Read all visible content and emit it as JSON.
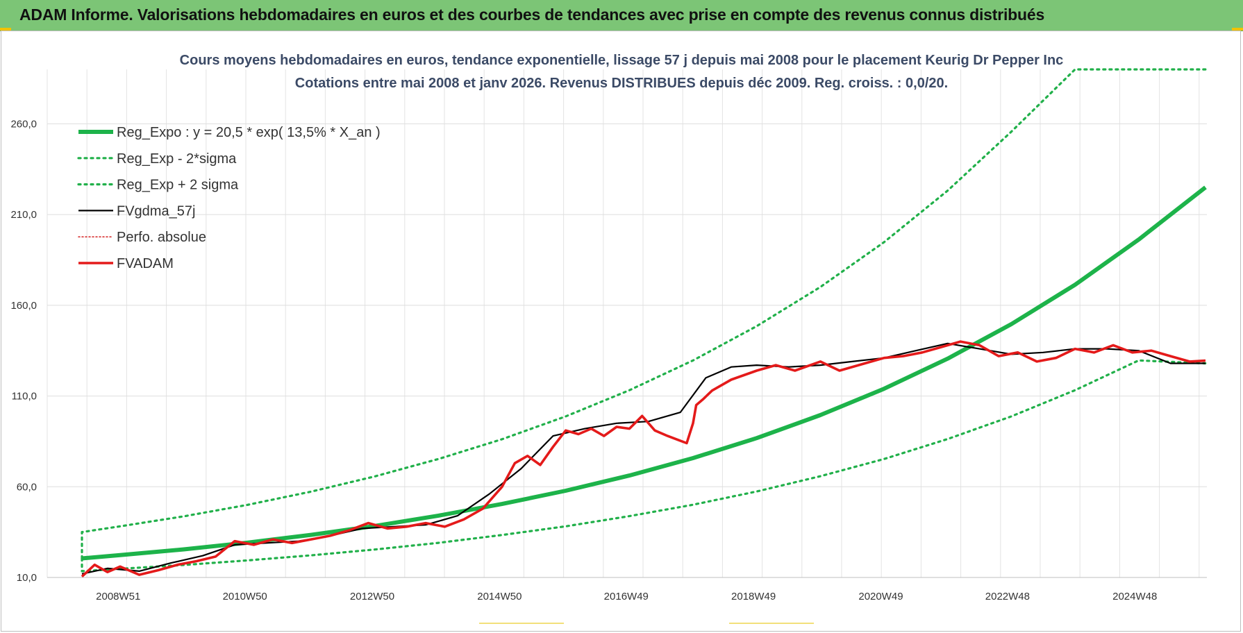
{
  "header": {
    "title": "ADAM Informe. Valorisations hebdomadaires en euros et des courbes de tendances avec prise en compte des revenus connus distribués"
  },
  "colors": {
    "header_bg": "#7cc576",
    "accent_yellow": "#f2c200",
    "reg_green": "#1db34a",
    "band_green": "#21b04a",
    "fvgdma_black": "#000000",
    "fvadam_red": "#e41a1a",
    "perfo_red": "#d42020"
  },
  "chart_data": {
    "type": "line",
    "title_line1": "Cours moyens hebdomadaires en euros, tendance exponentielle, lissage 57 j depuis mai 2008 pour le placement Keurig Dr Pepper Inc",
    "title_line2": "Cotations entre mai 2008 et janv 2026. Revenus DISTRIBUES depuis déc 2009. Reg. croiss. : 0,0/20.",
    "xlabel": "",
    "ylabel": "",
    "x_range_years": [
      2008.4,
      2026.05
    ],
    "x_tick_labels": [
      "2008W51",
      "2010W50",
      "2012W50",
      "2014W50",
      "2016W49",
      "2018W49",
      "2020W49",
      "2022W48",
      "2024W48"
    ],
    "x_tick_years": [
      2008.97,
      2010.96,
      2012.96,
      2014.96,
      2016.95,
      2018.95,
      2020.95,
      2022.94,
      2024.94
    ],
    "ylim": [
      10,
      290
    ],
    "y_tick_values": [
      10,
      60,
      110,
      160,
      210,
      260
    ],
    "y_tick_labels": [
      "10,0",
      "60,0",
      "110,0",
      "160,0",
      "210,0",
      "260,0"
    ],
    "grid": true,
    "legend_position": "top-left",
    "legend": [
      {
        "label": "Reg_Expo : y = 20,5 * exp( 13,5% *  X_an )",
        "style": "solid-thick",
        "color": "#1db34a"
      },
      {
        "label": "Reg_Exp - 2*sigma",
        "style": "dotted",
        "color": "#21b04a"
      },
      {
        "label": "Reg_Exp + 2 sigma",
        "style": "dotted",
        "color": "#21b04a"
      },
      {
        "label": "FVgdma_57j",
        "style": "solid",
        "color": "#000000"
      },
      {
        "label": "Perfo. absolue",
        "style": "dotted-thin",
        "color": "#d42020"
      },
      {
        "label": "FVADAM",
        "style": "solid-thick",
        "color": "#e41a1a"
      }
    ],
    "series": [
      {
        "name": "Reg_Expo : y = 20,5 * exp( 13,5% *  X_an )",
        "x": [
          2008.4,
          2009.0,
          2010.0,
          2011.0,
          2012.0,
          2013.0,
          2014.0,
          2015.0,
          2016.0,
          2017.0,
          2018.0,
          2019.0,
          2020.0,
          2021.0,
          2022.0,
          2023.0,
          2024.0,
          2025.0,
          2026.05
        ],
        "y": [
          20.5,
          22.3,
          25.5,
          29.2,
          33.5,
          38.4,
          44.1,
          50.5,
          57.8,
          66.2,
          75.8,
          86.8,
          99.5,
          114.0,
          130.6,
          149.6,
          171.3,
          196.2,
          225.0
        ]
      },
      {
        "name": "Reg_Exp - 2*sigma",
        "x": [
          2008.4,
          2009.0,
          2010.0,
          2011.0,
          2012.0,
          2013.0,
          2014.0,
          2015.0,
          2016.0,
          2017.0,
          2018.0,
          2019.0,
          2020.0,
          2021.0,
          2022.0,
          2023.0,
          2024.0,
          2025.0,
          2026.05
        ],
        "y": [
          13.5,
          14.8,
          16.9,
          19.4,
          22.2,
          25.4,
          29.1,
          33.4,
          38.2,
          43.8,
          50.1,
          57.4,
          65.8,
          75.3,
          86.3,
          98.8,
          113.2,
          129.6,
          128.0
        ]
      },
      {
        "name": "Reg_Exp + 2 sigma",
        "x": [
          2008.4,
          2009.0,
          2010.0,
          2011.0,
          2012.0,
          2013.0,
          2014.0,
          2015.0,
          2016.0,
          2017.0,
          2018.0,
          2019.0,
          2020.0,
          2021.0,
          2022.0,
          2023.0,
          2024.0,
          2025.0,
          2026.05
        ],
        "y": [
          35.0,
          38.2,
          43.7,
          50.0,
          57.3,
          65.7,
          75.3,
          86.2,
          98.8,
          113.2,
          129.6,
          148.5,
          170.1,
          194.8,
          223.2,
          255.7,
          290.0,
          290.0,
          290.0
        ]
      },
      {
        "name": "FVgdma_57j",
        "x": [
          2008.4,
          2008.8,
          2009.3,
          2009.8,
          2010.3,
          2010.8,
          2011.3,
          2011.8,
          2012.3,
          2012.8,
          2013.3,
          2013.8,
          2014.3,
          2014.8,
          2015.3,
          2015.8,
          2016.3,
          2016.8,
          2017.3,
          2017.8,
          2018.2,
          2018.6,
          2019.0,
          2019.5,
          2020.0,
          2020.5,
          2021.0,
          2021.5,
          2022.0,
          2022.5,
          2023.0,
          2023.5,
          2024.0,
          2024.5,
          2025.0,
          2025.5,
          2026.05
        ],
        "y": [
          12.0,
          15.0,
          13.5,
          18.0,
          22.0,
          28.0,
          29.0,
          30.0,
          33.0,
          37.0,
          38.0,
          39.0,
          44.0,
          56.0,
          70.0,
          88.0,
          92.0,
          95.0,
          96.0,
          101.0,
          120.0,
          126.0,
          127.0,
          126.0,
          127.0,
          129.0,
          131.0,
          135.0,
          139.0,
          136.0,
          133.0,
          134.0,
          136.0,
          136.0,
          135.0,
          128.0,
          128.0
        ]
      },
      {
        "name": "FVADAM",
        "x": [
          2008.4,
          2008.6,
          2008.8,
          2009.0,
          2009.3,
          2009.6,
          2009.9,
          2010.2,
          2010.5,
          2010.8,
          2011.1,
          2011.4,
          2011.7,
          2012.0,
          2012.3,
          2012.6,
          2012.9,
          2013.2,
          2013.5,
          2013.8,
          2014.1,
          2014.4,
          2014.7,
          2015.0,
          2015.2,
          2015.4,
          2015.6,
          2015.8,
          2016.0,
          2016.2,
          2016.4,
          2016.6,
          2016.8,
          2017.0,
          2017.2,
          2017.4,
          2017.6,
          2017.9,
          2018.0,
          2018.05,
          2018.15,
          2018.3,
          2018.6,
          2019.0,
          2019.3,
          2019.6,
          2020.0,
          2020.3,
          2020.6,
          2021.0,
          2021.3,
          2021.6,
          2021.9,
          2022.2,
          2022.5,
          2022.8,
          2023.1,
          2023.4,
          2023.7,
          2024.0,
          2024.3,
          2024.6,
          2024.9,
          2025.2,
          2025.5,
          2025.8,
          2026.05
        ],
        "y": [
          10.5,
          17.0,
          13.0,
          16.0,
          11.5,
          14.0,
          17.0,
          19.0,
          21.5,
          30.0,
          28.0,
          31.0,
          29.0,
          31.0,
          33.0,
          36.0,
          40.0,
          37.0,
          38.0,
          40.0,
          38.0,
          42.0,
          48.0,
          60.0,
          73.0,
          77.0,
          72.0,
          82.0,
          91.0,
          89.0,
          92.0,
          88.0,
          93.0,
          92.0,
          99.0,
          91.0,
          88.0,
          84.0,
          95.0,
          105.0,
          108.0,
          113.0,
          119.0,
          124.0,
          127.0,
          124.0,
          129.0,
          124.0,
          127.0,
          131.0,
          132.0,
          134.0,
          137.0,
          140.0,
          138.0,
          132.0,
          134.0,
          129.0,
          131.0,
          136.0,
          134.0,
          138.0,
          134.0,
          135.0,
          132.0,
          129.0,
          129.5
        ]
      },
      {
        "name": "Perfo. absolue",
        "x": [],
        "y": []
      }
    ]
  }
}
